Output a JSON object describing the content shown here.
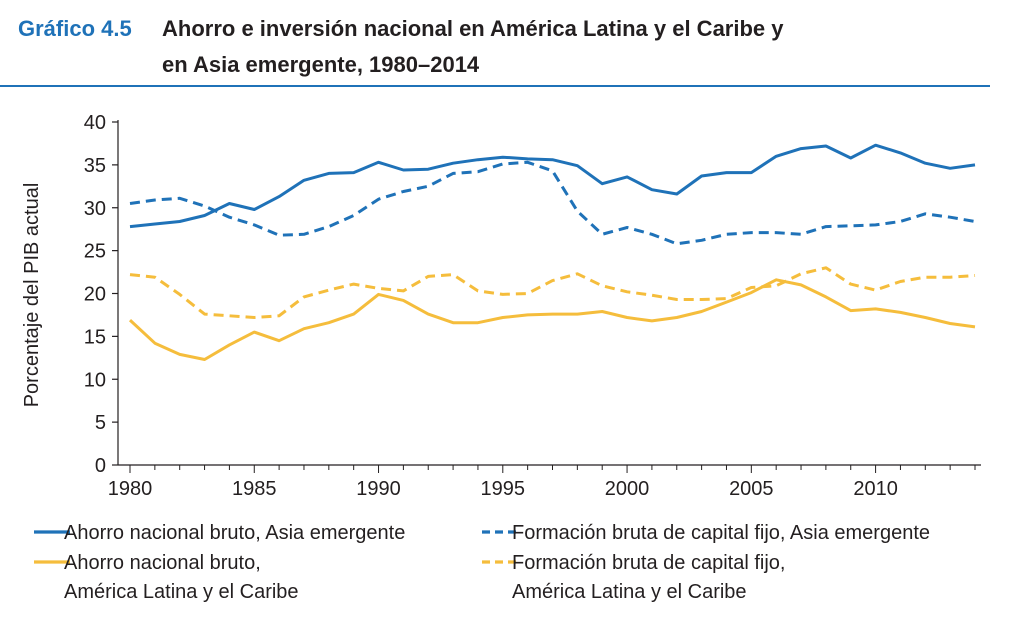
{
  "header": {
    "label": "Gráfico 4.5",
    "title_line1": "Ahorro e inversión nacional en América Latina y el Caribe y",
    "title_line2": "en Asia emergente, 1980–2014"
  },
  "colors": {
    "blue": "#1f72b8",
    "gold": "#f5bd3c",
    "rule": "#1f72b8",
    "text": "#231f20"
  },
  "chart_data": {
    "type": "line",
    "ylabel": "Porcentaje del PIB actual",
    "xlabel": "",
    "ylim": [
      0,
      40
    ],
    "xlim": [
      1980,
      2014
    ],
    "yticks": [
      0,
      5,
      10,
      15,
      20,
      25,
      30,
      35,
      40
    ],
    "xticks": [
      1980,
      1985,
      1990,
      1995,
      2000,
      2005,
      2010
    ],
    "x": [
      1980,
      1981,
      1982,
      1983,
      1984,
      1985,
      1986,
      1987,
      1988,
      1989,
      1990,
      1991,
      1992,
      1993,
      1994,
      1995,
      1996,
      1997,
      1998,
      1999,
      2000,
      2001,
      2002,
      2003,
      2004,
      2005,
      2006,
      2007,
      2008,
      2009,
      2010,
      2011,
      2012,
      2013,
      2014
    ],
    "grid": false,
    "series": [
      {
        "name": "Ahorro nacional bruto, Asia emergente",
        "color": "#1f72b8",
        "dash": "solid",
        "values": [
          27.8,
          28.1,
          28.4,
          29.1,
          30.5,
          29.8,
          31.3,
          33.2,
          34.0,
          34.1,
          35.3,
          34.4,
          34.5,
          35.2,
          35.6,
          35.9,
          35.7,
          35.6,
          34.9,
          32.8,
          33.6,
          32.1,
          31.6,
          33.7,
          34.1,
          34.1,
          36.0,
          36.9,
          37.2,
          35.8,
          37.3,
          36.4,
          35.2,
          34.6,
          35.0
        ]
      },
      {
        "name": "Formación bruta de capital fijo, Asia emergente",
        "color": "#1f72b8",
        "dash": "dashed",
        "values": [
          30.5,
          30.9,
          31.1,
          30.2,
          28.9,
          28.0,
          26.8,
          26.9,
          27.8,
          29.1,
          31.0,
          31.9,
          32.5,
          34.0,
          34.2,
          35.1,
          35.3,
          34.3,
          29.6,
          26.9,
          27.7,
          26.9,
          25.8,
          26.2,
          26.9,
          27.1,
          27.1,
          26.9,
          27.8,
          27.9,
          28.0,
          28.4,
          29.3,
          28.9,
          28.4
        ]
      },
      {
        "name": "Ahorro nacional bruto,\nAmérica Latina y el Caribe",
        "color": "#f5bd3c",
        "dash": "solid",
        "values": [
          16.9,
          14.2,
          12.9,
          12.3,
          14.0,
          15.5,
          14.5,
          15.9,
          16.6,
          17.6,
          19.9,
          19.2,
          17.6,
          16.6,
          16.6,
          17.2,
          17.5,
          17.6,
          17.6,
          17.9,
          17.2,
          16.8,
          17.2,
          17.9,
          19.0,
          20.1,
          21.6,
          21.0,
          19.6,
          18.0,
          18.2,
          17.8,
          17.2,
          16.5,
          16.1
        ]
      },
      {
        "name": "Formación bruta de capital fijo,\nAmérica Latina y el Caribe",
        "color": "#f5bd3c",
        "dash": "dashed",
        "values": [
          22.2,
          21.9,
          19.9,
          17.6,
          17.4,
          17.2,
          17.4,
          19.6,
          20.4,
          21.1,
          20.6,
          20.3,
          22.0,
          22.2,
          20.3,
          19.9,
          20.0,
          21.5,
          22.3,
          20.9,
          20.2,
          19.8,
          19.3,
          19.3,
          19.4,
          20.7,
          20.9,
          22.3,
          23.0,
          21.1,
          20.4,
          21.4,
          21.9,
          21.9,
          22.1
        ]
      }
    ]
  }
}
